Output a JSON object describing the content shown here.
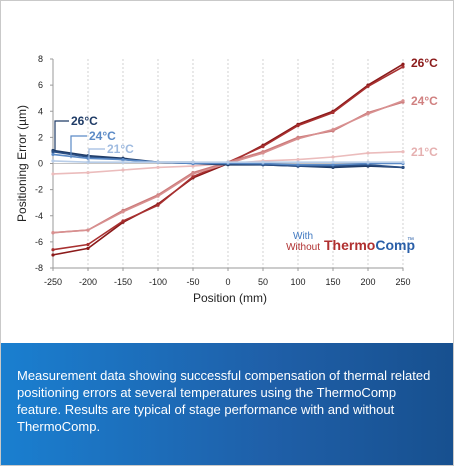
{
  "chart_data": {
    "type": "line",
    "xlabel": "Position (mm)",
    "ylabel": "Positioning Error (µm)",
    "xlim": [
      -250,
      250
    ],
    "ylim": [
      -8,
      8
    ],
    "x_ticks": [
      -250,
      -200,
      -150,
      -100,
      -50,
      0,
      50,
      100,
      150,
      200,
      250
    ],
    "y_ticks": [
      -8,
      -6,
      -4,
      -2,
      0,
      2,
      4,
      6,
      8
    ],
    "grid": "vertical dashed lines at each x tick",
    "x": [
      -250,
      -200,
      -150,
      -100,
      -50,
      0,
      50,
      100,
      150,
      200,
      250
    ],
    "series": [
      {
        "name": "26°C",
        "group": "without",
        "color": "#8b1a1a",
        "values": [
          -7.0,
          -6.5,
          -4.5,
          -3.1,
          -1.1,
          0.0,
          1.4,
          3.0,
          4.0,
          6.0,
          7.6
        ]
      },
      {
        "name": "26°C",
        "group": "without",
        "color": "#a83030",
        "values": [
          -6.6,
          -6.2,
          -4.4,
          -3.2,
          -1.0,
          0.1,
          1.3,
          2.9,
          3.9,
          5.9,
          7.4
        ]
      },
      {
        "name": "24°C",
        "group": "without",
        "color": "#cc7b7b",
        "values": [
          -5.3,
          -5.1,
          -3.6,
          -2.4,
          -0.7,
          0.1,
          0.9,
          2.0,
          2.5,
          3.9,
          4.7
        ]
      },
      {
        "name": "24°C",
        "group": "without",
        "color": "#d89090",
        "values": [
          -5.3,
          -5.1,
          -3.7,
          -2.5,
          -0.8,
          0.0,
          0.8,
          1.9,
          2.6,
          3.8,
          4.8
        ]
      },
      {
        "name": "21°C",
        "group": "without",
        "color": "#ebbcbc",
        "values": [
          -0.8,
          -0.7,
          -0.5,
          -0.3,
          -0.2,
          0.0,
          0.2,
          0.3,
          0.5,
          0.8,
          0.9
        ]
      },
      {
        "name": "26°C",
        "group": "with",
        "color": "#1f3b66",
        "values": [
          1.0,
          0.6,
          0.4,
          0.1,
          0.0,
          -0.1,
          -0.1,
          -0.2,
          -0.3,
          -0.2,
          -0.3
        ]
      },
      {
        "name": "26°C",
        "group": "with",
        "color": "#2a4f85",
        "values": [
          0.9,
          0.5,
          0.3,
          0.1,
          0.1,
          0.0,
          -0.1,
          -0.2,
          -0.2,
          -0.1,
          -0.3
        ]
      },
      {
        "name": "24°C",
        "group": "with",
        "color": "#5b8ac6",
        "values": [
          0.7,
          0.4,
          0.3,
          0.1,
          0.0,
          0.0,
          0.0,
          -0.1,
          -0.1,
          0.0,
          0.0
        ]
      },
      {
        "name": "21°C",
        "group": "with",
        "color": "#b8cde8",
        "values": [
          0.2,
          0.1,
          0.1,
          0.1,
          0.1,
          0.1,
          0.1,
          0.1,
          0.1,
          0.1,
          0.1
        ]
      }
    ],
    "annotations": {
      "left": [
        {
          "text": "26°C",
          "color": "#1f3b66"
        },
        {
          "text": "24°C",
          "color": "#5b8ac6"
        },
        {
          "text": "21°C",
          "color": "#9fbbe0"
        }
      ],
      "right": [
        {
          "text": "26°C",
          "color": "#8b1a1a"
        },
        {
          "text": "24°C",
          "color": "#d08080"
        },
        {
          "text": "21°C",
          "color": "#e5b0b0"
        }
      ]
    },
    "legend": {
      "with_label": "With",
      "without_label": "Without",
      "brand_part1": "Thermo",
      "brand_part2": "Comp",
      "trademark": "™",
      "placement": "bottom-right"
    }
  },
  "caption": "Measurement data showing successful compensation of thermal related positioning errors at several temperatures using the ThermoComp feature. Results are typical of stage performance with and without ThermoComp."
}
